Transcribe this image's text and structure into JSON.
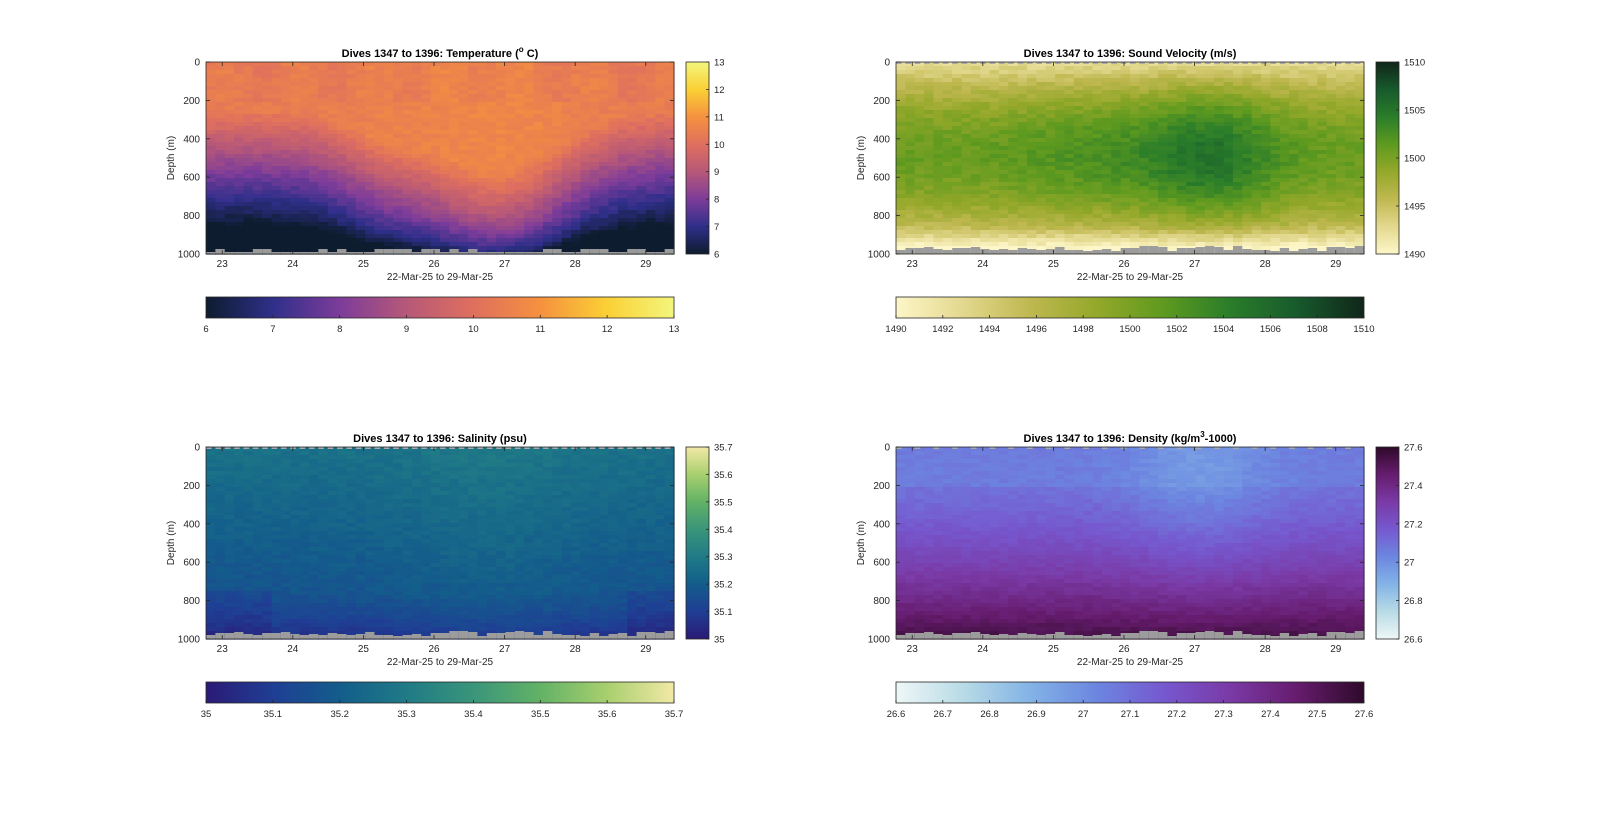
{
  "chart_data": [
    {
      "type": "heatmap",
      "title": "Dives 1347 to 1396: Temperature (",
      "title_sup": "o",
      "title_end": " C)",
      "xlabel": "22-Mar-25 to 29-Mar-25",
      "ylabel": "Depth (m)",
      "x_ticks": [
        "23",
        "24",
        "25",
        "26",
        "27",
        "28",
        "29"
      ],
      "y_ticks": [
        "0",
        "200",
        "400",
        "600",
        "800",
        "1000"
      ],
      "ylim": [
        0,
        1000
      ],
      "y_reversed": true,
      "xlim": [
        22.77,
        29.4
      ],
      "colorbar_ticks": [
        "13",
        "12",
        "11",
        "10",
        "9",
        "8",
        "7",
        "6"
      ],
      "horizontal_colorbar_ticks": [
        "6",
        "7",
        "8",
        "9",
        "10",
        "11",
        "12",
        "13"
      ],
      "clim": [
        6,
        13
      ],
      "colormap": [
        "#0d1c2e",
        "#2f2f8a",
        "#7d3c9a",
        "#b75878",
        "#df6f5e",
        "#f5913f",
        "#fbd035",
        "#f3f67c"
      ],
      "field_description_values": {
        "surface": 10.3,
        "deep_warm_period": 10.8,
        "bottom": 6.6
      }
    },
    {
      "type": "heatmap",
      "title": "Dives 1347 to 1396: Sound Velocity (m/s)",
      "xlabel": "22-Mar-25 to 29-Mar-25",
      "ylabel": "Depth (m)",
      "x_ticks": [
        "23",
        "24",
        "25",
        "26",
        "27",
        "28",
        "29"
      ],
      "y_ticks": [
        "0",
        "200",
        "400",
        "600",
        "800",
        "1000"
      ],
      "ylim": [
        0,
        1000
      ],
      "y_reversed": true,
      "xlim": [
        22.77,
        29.4
      ],
      "colorbar_ticks": [
        "1510",
        "1505",
        "1500",
        "1495",
        "1490"
      ],
      "horizontal_colorbar_ticks": [
        "1490",
        "1492",
        "1494",
        "1496",
        "1498",
        "1500",
        "1502",
        "1504",
        "1506",
        "1508",
        "1510"
      ],
      "clim": [
        1490,
        1510
      ],
      "colormap": [
        "#fdf6c8",
        "#e3d88e",
        "#bfb850",
        "#94a82a",
        "#5e9a1f",
        "#2a7d2a",
        "#175a2c",
        "#10261a"
      ],
      "field_description_values": {
        "surface": 1493,
        "mid_max": 1501,
        "bottom": 1493
      }
    },
    {
      "type": "heatmap",
      "title": "Dives 1347 to 1396: Salinity (psu)",
      "xlabel": "22-Mar-25 to 29-Mar-25",
      "ylabel": "Depth (m)",
      "x_ticks": [
        "23",
        "24",
        "25",
        "26",
        "27",
        "28",
        "29"
      ],
      "y_ticks": [
        "0",
        "200",
        "400",
        "600",
        "800",
        "1000"
      ],
      "ylim": [
        0,
        1000
      ],
      "y_reversed": true,
      "xlim": [
        22.77,
        29.4
      ],
      "colorbar_ticks": [
        "35.7",
        "35.6",
        "35.5",
        "35.4",
        "35.3",
        "35.2",
        "35.1",
        "35"
      ],
      "horizontal_colorbar_ticks": [
        "35",
        "35.1",
        "35.2",
        "35.3",
        "35.4",
        "35.5",
        "35.6",
        "35.7"
      ],
      "clim": [
        35,
        35.7
      ],
      "colormap": [
        "#2a1a75",
        "#1f3e94",
        "#135d8b",
        "#1f7b86",
        "#3a957a",
        "#62b266",
        "#a8cf6e",
        "#f2e9a6"
      ],
      "field_description_values": {
        "surface": 35.27,
        "mid": 35.2,
        "bottom": 35.1
      }
    },
    {
      "type": "heatmap",
      "title": "Dives 1347 to 1396: Density (kg/m",
      "title_sup": "3",
      "title_end": "-1000)",
      "xlabel": "22-Mar-25 to 29-Mar-25",
      "ylabel": "Depth (m)",
      "x_ticks": [
        "23",
        "24",
        "25",
        "26",
        "27",
        "28",
        "29"
      ],
      "y_ticks": [
        "0",
        "200",
        "400",
        "600",
        "800",
        "1000"
      ],
      "ylim": [
        0,
        1000
      ],
      "y_reversed": true,
      "xlim": [
        22.77,
        29.4
      ],
      "colorbar_ticks": [
        "27.6",
        "27.4",
        "27.2",
        "27",
        "26.8",
        "26.6"
      ],
      "horizontal_colorbar_ticks": [
        "26.6",
        "26.7",
        "26.8",
        "26.9",
        "27",
        "27.1",
        "27.2",
        "27.3",
        "27.4",
        "27.5",
        "27.6"
      ],
      "clim": [
        26.6,
        27.6
      ],
      "colormap": [
        "#eef7f7",
        "#b8dbe6",
        "#83b3e6",
        "#6c86e0",
        "#7658cf",
        "#7a3aa6",
        "#661c6e",
        "#2e0a2a"
      ],
      "field_description_values": {
        "surface": 27.08,
        "mid": 27.25,
        "bottom": 27.5
      }
    }
  ]
}
